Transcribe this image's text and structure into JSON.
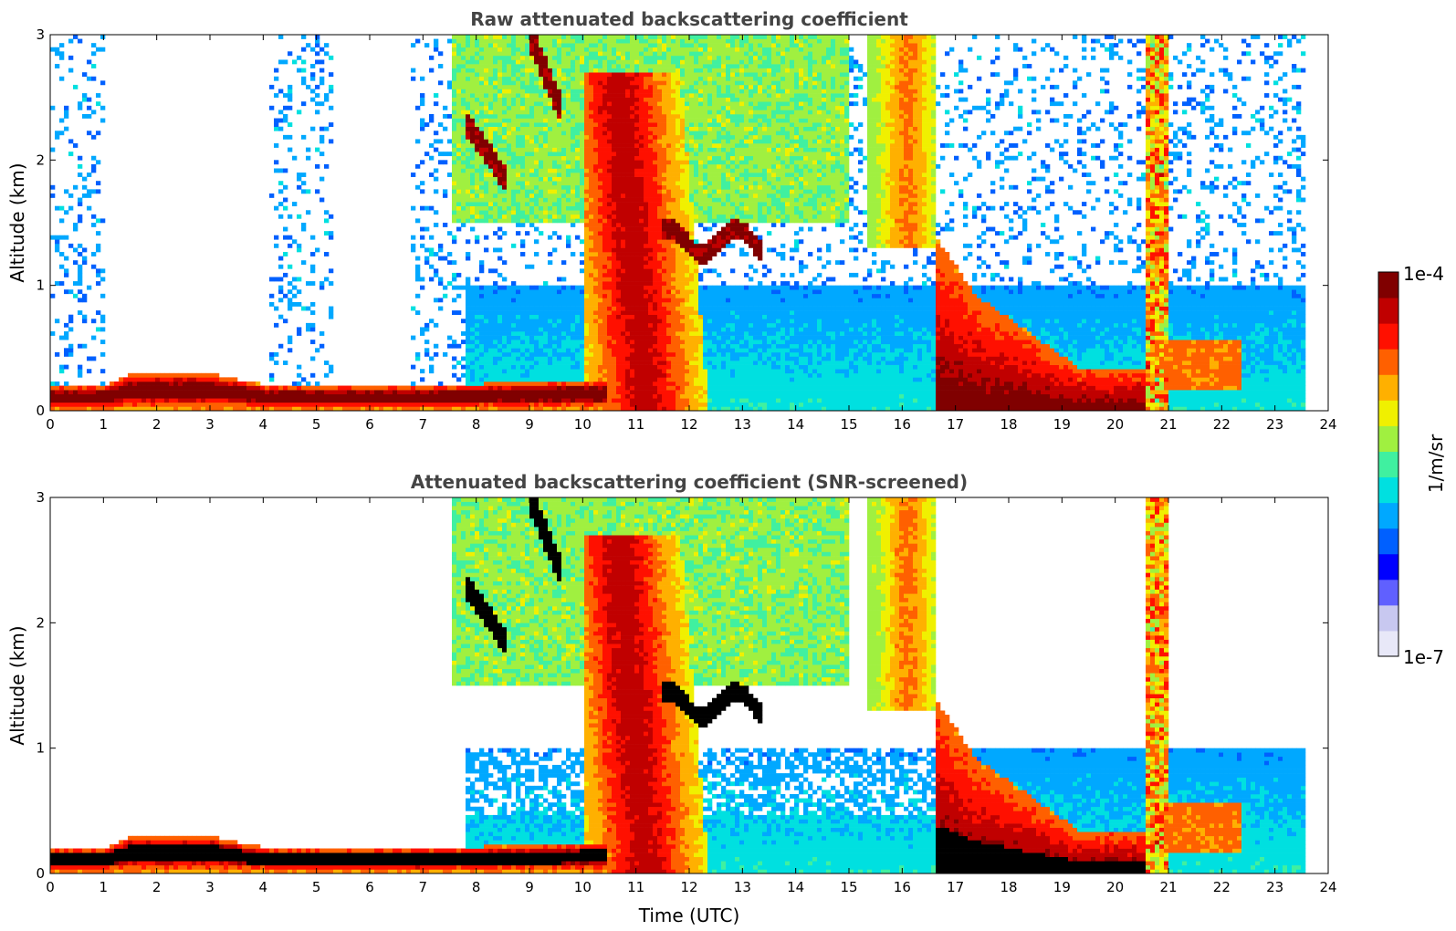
{
  "chart_data": [
    {
      "type": "heatmap",
      "title": "Raw attenuated backscattering coefficient",
      "xlabel": "",
      "ylabel": "Altitude (km)",
      "xlim": [
        0,
        24
      ],
      "ylim": [
        0,
        3
      ],
      "xticks": [
        "0",
        "1",
        "2",
        "3",
        "4",
        "5",
        "6",
        "7",
        "8",
        "9",
        "10",
        "11",
        "12",
        "13",
        "14",
        "15",
        "16",
        "17",
        "18",
        "19",
        "20",
        "21",
        "22",
        "23",
        "24"
      ],
      "yticks": [
        "0",
        "1",
        "2",
        "3"
      ],
      "screened": false,
      "data_end_hour": 23.55,
      "aerosol_layer_top_km": [
        {
          "t": 0,
          "top": 0.2
        },
        {
          "t": 1,
          "top": 0.21
        },
        {
          "t": 1.5,
          "top": 0.3
        },
        {
          "t": 3,
          "top": 0.31
        },
        {
          "t": 4,
          "top": 0.22
        },
        {
          "t": 5,
          "top": 0.2
        },
        {
          "t": 7,
          "top": 0.2
        },
        {
          "t": 8,
          "top": 0.22
        },
        {
          "t": 10.5,
          "top": 0.25
        }
      ],
      "features": [
        {
          "name": "cloud-layer-2km",
          "t0": 7.8,
          "t1": 8.5,
          "base_km": 1.8,
          "top_km": 2.4,
          "intensity": "high"
        },
        {
          "name": "cloud-layer-2.6km",
          "t0": 9.0,
          "t1": 9.6,
          "base_km": 2.4,
          "top_km": 3.0,
          "intensity": "high"
        },
        {
          "name": "precip-band",
          "t0": 10.0,
          "t1": 11.8,
          "base_km": 0.0,
          "top_km": 2.7,
          "intensity": "medium-high"
        },
        {
          "name": "cloud-layer-1.4km",
          "t0": 11.5,
          "t1": 13.4,
          "base_km": 1.2,
          "top_km": 1.6,
          "intensity": "high"
        },
        {
          "name": "virga-band",
          "t0": 15.4,
          "t1": 16.6,
          "base_km": 1.4,
          "top_km": 3.0,
          "intensity": "medium"
        },
        {
          "name": "boundary-layer-cloud",
          "t0": 16.6,
          "t1": 20.6,
          "base_km": 0.0,
          "top_km": 1.4,
          "intensity": "high"
        },
        {
          "name": "aerosol-plume",
          "t0": 20.8,
          "t1": 22.4,
          "base_km": 0.2,
          "top_km": 0.6,
          "intensity": "medium-high"
        }
      ]
    },
    {
      "type": "heatmap",
      "title": "Attenuated backscattering coefficient (SNR-screened)",
      "xlabel": "Time (UTC)",
      "ylabel": "Altitude (km)",
      "xlim": [
        0,
        24
      ],
      "ylim": [
        0,
        3
      ],
      "xticks": [
        "0",
        "1",
        "2",
        "3",
        "4",
        "5",
        "6",
        "7",
        "8",
        "9",
        "10",
        "11",
        "12",
        "13",
        "14",
        "15",
        "16",
        "17",
        "18",
        "19",
        "20",
        "21",
        "22",
        "23",
        "24"
      ],
      "yticks": [
        "0",
        "1",
        "2",
        "3"
      ],
      "screened": true,
      "data_end_hour": 23.55
    }
  ],
  "colorbar": {
    "label": "1/m/sr",
    "max_label": "1e-4",
    "min_label": "1e-7",
    "colormap": [
      "#e8e8f8",
      "#c8c8f0",
      "#6060ff",
      "#0000ff",
      "#0060ff",
      "#00a8ff",
      "#00e0e0",
      "#40f0a0",
      "#a0f040",
      "#f0f000",
      "#ffb000",
      "#ff6000",
      "#ff1000",
      "#c00000",
      "#800000"
    ],
    "saturated_color": "#000000"
  }
}
